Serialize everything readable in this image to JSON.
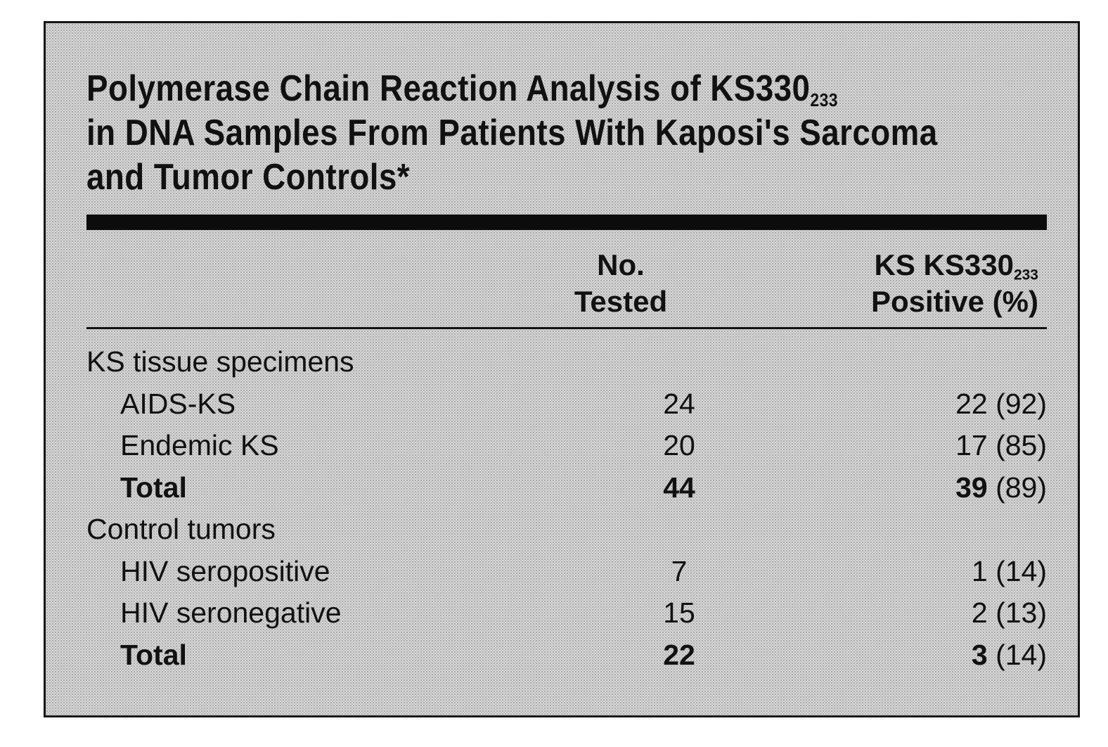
{
  "title": {
    "line1_main": "Polymerase Chain Reaction Analysis of KS330",
    "line1_sub": "233",
    "line2": "in DNA Samples From Patients With Kaposi's Sarcoma",
    "line3": "and Tumor Controls*"
  },
  "columns": {
    "tested_line1": "No.",
    "tested_line2": "Tested",
    "positive_line1_main": "KS KS330",
    "positive_line1_sub": "233",
    "positive_line2": "Positive (%)"
  },
  "rows": [
    {
      "label": "KS tissue specimens",
      "tested": "",
      "positive": "",
      "percent": "",
      "group": true
    },
    {
      "label": "AIDS-KS",
      "tested": "24",
      "positive": "22",
      "percent": "(92)"
    },
    {
      "label": "Endemic KS",
      "tested": "20",
      "positive": "17",
      "percent": "(85)"
    },
    {
      "label": "Total",
      "tested": "44",
      "positive": "39",
      "percent": "(89)",
      "total": true
    },
    {
      "label": "Control tumors",
      "tested": "",
      "positive": "",
      "percent": "",
      "group": true
    },
    {
      "label": "HIV seropositive",
      "tested": "7",
      "positive": "1",
      "percent": "(14)"
    },
    {
      "label": "HIV seronegative",
      "tested": "15",
      "positive": "2",
      "percent": "(13)"
    },
    {
      "label": "Total",
      "tested": "22",
      "positive": "3",
      "percent": "(14)",
      "total": true
    }
  ]
}
